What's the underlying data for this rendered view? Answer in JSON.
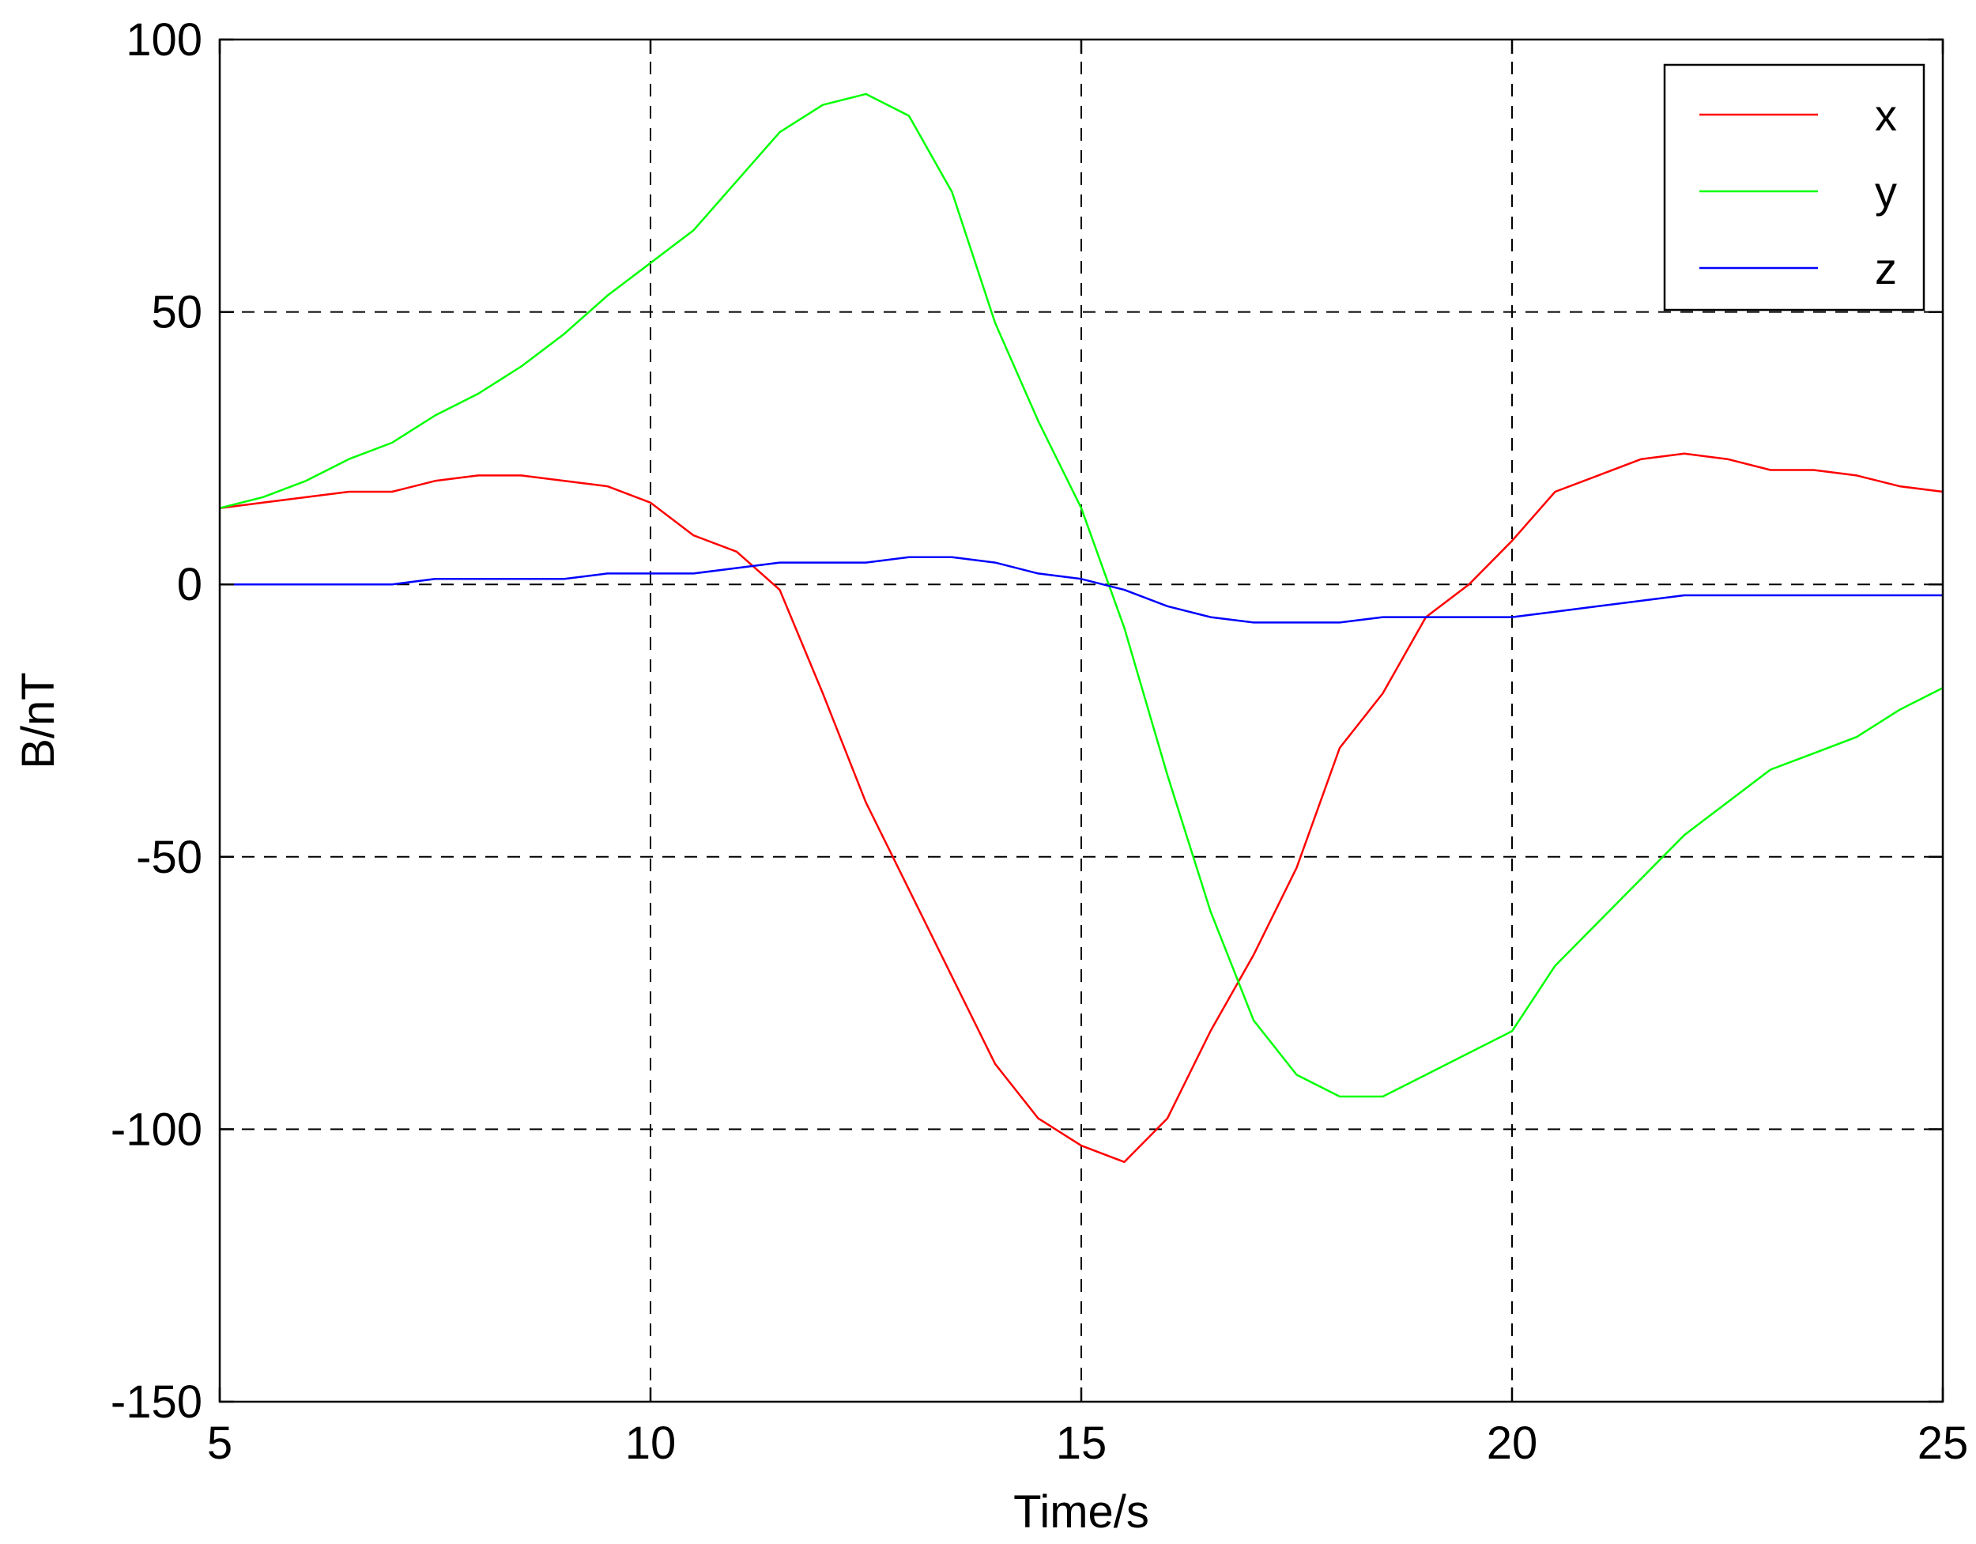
{
  "chart_data": {
    "type": "line",
    "title": "",
    "xlabel": "Time/s",
    "ylabel": "B/nT",
    "xlim": [
      5,
      25
    ],
    "ylim": [
      -150,
      100
    ],
    "xticks": [
      5,
      10,
      15,
      20,
      25
    ],
    "yticks": [
      -150,
      -100,
      -50,
      0,
      50,
      100
    ],
    "grid": true,
    "legend_position": "top-right",
    "series": [
      {
        "name": "x",
        "color": "#ff0000",
        "x": [
          5,
          5.5,
          6,
          6.5,
          7,
          7.5,
          8,
          8.5,
          9,
          9.5,
          10,
          10.5,
          11,
          11.5,
          12,
          12.5,
          13,
          13.5,
          14,
          14.5,
          15,
          15.5,
          16,
          16.5,
          17,
          17.5,
          18,
          18.5,
          19,
          19.5,
          20,
          20.5,
          21,
          21.5,
          22,
          22.5,
          23,
          23.5,
          24,
          24.5,
          25
        ],
        "values": [
          14,
          15,
          16,
          17,
          17,
          19,
          20,
          20,
          19,
          18,
          15,
          9,
          6,
          -1,
          -20,
          -40,
          -56,
          -72,
          -88,
          -98,
          -103,
          -106,
          -98,
          -82,
          -68,
          -52,
          -30,
          -20,
          -6,
          0,
          8,
          17,
          20,
          23,
          24,
          23,
          21,
          21,
          20,
          18,
          17
        ]
      },
      {
        "name": "y",
        "color": "#00ff00",
        "x": [
          5,
          5.5,
          6,
          6.5,
          7,
          7.5,
          8,
          8.5,
          9,
          9.5,
          10,
          10.5,
          11,
          11.5,
          12,
          12.5,
          13,
          13.5,
          14,
          14.5,
          15,
          15.5,
          16,
          16.5,
          17,
          17.5,
          18,
          18.5,
          19,
          19.5,
          20,
          20.5,
          21,
          21.5,
          22,
          22.5,
          23,
          23.5,
          24,
          24.5,
          25
        ],
        "values": [
          14,
          16,
          19,
          23,
          26,
          31,
          35,
          40,
          46,
          53,
          59,
          65,
          74,
          83,
          88,
          90,
          86,
          72,
          48,
          30,
          14,
          -8,
          -35,
          -60,
          -80,
          -90,
          -94,
          -94,
          -90,
          -86,
          -82,
          -70,
          -62,
          -54,
          -46,
          -40,
          -34,
          -31,
          -28,
          -23,
          -19
        ]
      },
      {
        "name": "z",
        "color": "#0000ff",
        "x": [
          5,
          6,
          7,
          7.5,
          8,
          8.5,
          9,
          9.5,
          10,
          10.5,
          11,
          11.5,
          12,
          12.5,
          13,
          13.5,
          14,
          14.5,
          15,
          15.5,
          16,
          16.5,
          17,
          17.5,
          18,
          18.5,
          19,
          19.5,
          20,
          20.5,
          21,
          21.5,
          22,
          22.5,
          23,
          24,
          25
        ],
        "values": [
          0,
          0,
          0,
          1,
          1,
          1,
          1,
          2,
          2,
          2,
          3,
          4,
          4,
          4,
          5,
          5,
          4,
          2,
          1,
          -1,
          -4,
          -6,
          -7,
          -7,
          -7,
          -6,
          -6,
          -6,
          -6,
          -5,
          -4,
          -3,
          -2,
          -2,
          -2,
          -2,
          -2
        ]
      }
    ]
  }
}
